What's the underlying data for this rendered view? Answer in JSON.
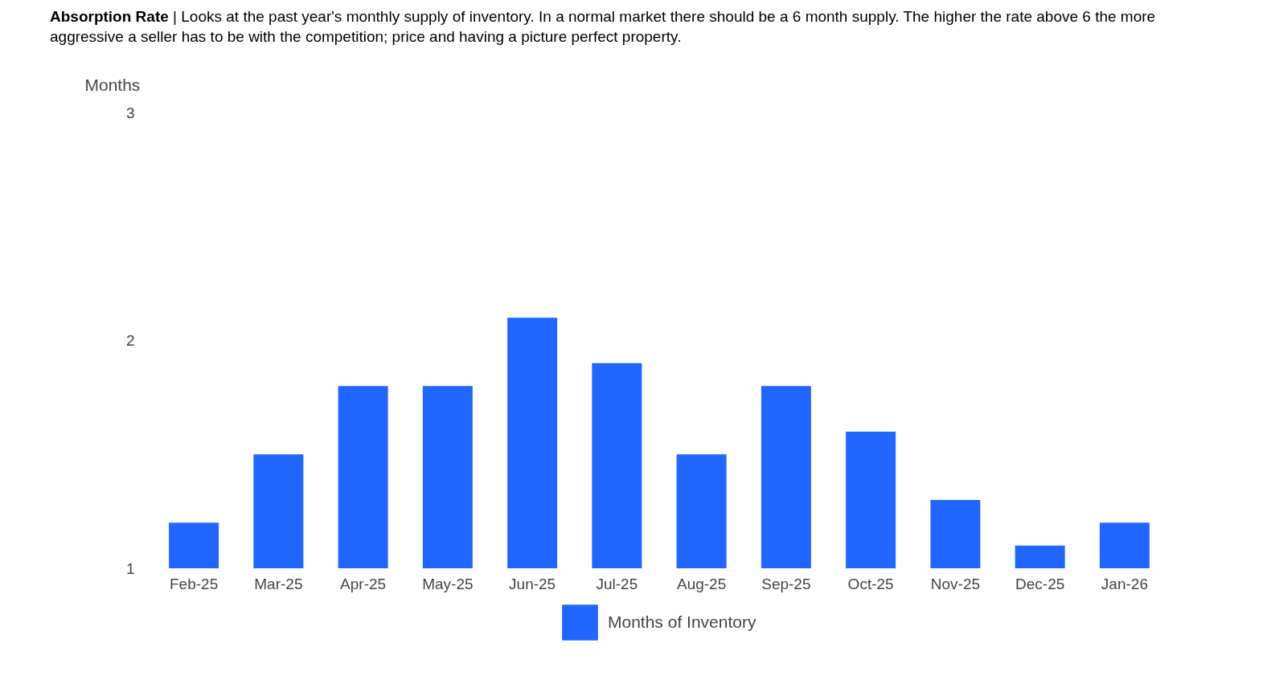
{
  "chart_data": {
    "type": "bar",
    "title": "Absorption Rate",
    "subtitle": "| Looks at the past year's monthly supply of inventory. In a normal market there should be a 6 month supply. The higher the rate above 6 the more aggressive a seller has to be with the competition; price and having a picture perfect property.",
    "ylabel": "Months",
    "categories": [
      "Feb-25",
      "Mar-25",
      "Apr-25",
      "May-25",
      "Jun-25",
      "Jul-25",
      "Aug-25",
      "Sep-25",
      "Oct-25",
      "Nov-25",
      "Dec-25",
      "Jan-26"
    ],
    "series": [
      {
        "name": "Months of Inventory",
        "color": "#2166ff",
        "values": [
          1.2,
          1.5,
          1.8,
          1.8,
          2.1,
          1.9,
          1.5,
          1.8,
          1.6,
          1.3,
          1.1,
          1.2
        ]
      }
    ],
    "ylim": [
      1,
      3
    ],
    "yticks": [
      1,
      2,
      3
    ],
    "grid": false,
    "legend": "bottom"
  }
}
